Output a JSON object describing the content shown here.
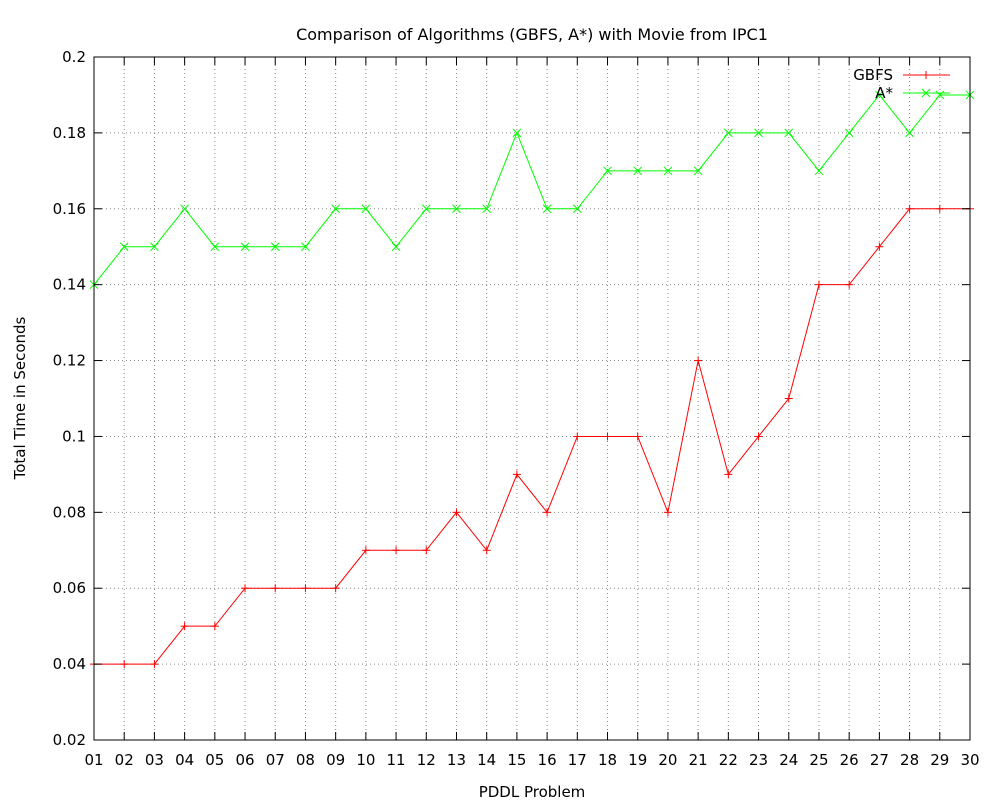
{
  "chart_data": {
    "type": "line",
    "title": "Comparison of Algorithms (GBFS, A*) with Movie from IPC1",
    "xlabel": "PDDL Problem",
    "ylabel": "Total Time in Seconds",
    "categories": [
      "01",
      "02",
      "03",
      "04",
      "05",
      "06",
      "07",
      "08",
      "09",
      "10",
      "11",
      "12",
      "13",
      "14",
      "15",
      "16",
      "17",
      "18",
      "19",
      "20",
      "21",
      "22",
      "23",
      "24",
      "25",
      "26",
      "27",
      "28",
      "29",
      "30"
    ],
    "ylim": [
      0.02,
      0.2
    ],
    "yticks": [
      "0.02",
      "0.04",
      "0.06",
      "0.08",
      "0.1",
      "0.12",
      "0.14",
      "0.16",
      "0.18",
      "0.2"
    ],
    "grid": true,
    "legend_position": "top-right",
    "series": [
      {
        "name": "GBFS",
        "color": "#ff0000",
        "marker": "plus",
        "values": [
          0.04,
          0.04,
          0.04,
          0.05,
          0.05,
          0.06,
          0.06,
          0.06,
          0.06,
          0.07,
          0.07,
          0.07,
          0.08,
          0.07,
          0.09,
          0.08,
          0.1,
          0.1,
          0.1,
          0.08,
          0.12,
          0.09,
          0.1,
          0.11,
          0.14,
          0.14,
          0.15,
          0.16,
          0.16,
          0.16
        ]
      },
      {
        "name": "A*",
        "color": "#00ff00",
        "marker": "cross",
        "values": [
          0.14,
          0.15,
          0.15,
          0.16,
          0.15,
          0.15,
          0.15,
          0.15,
          0.16,
          0.16,
          0.15,
          0.16,
          0.16,
          0.16,
          0.18,
          0.16,
          0.16,
          0.17,
          0.17,
          0.17,
          0.17,
          0.18,
          0.18,
          0.18,
          0.17,
          0.18,
          0.19,
          0.18,
          0.19,
          0.19
        ]
      }
    ]
  }
}
